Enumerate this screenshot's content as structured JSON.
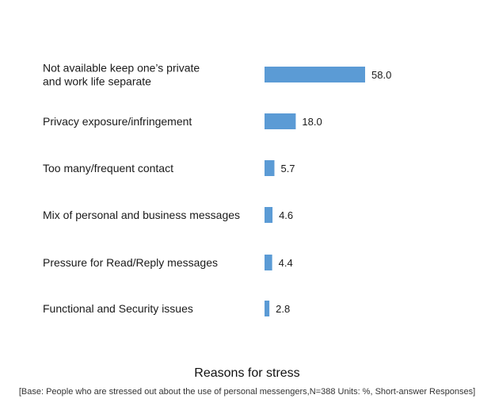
{
  "chart_data": {
    "type": "bar",
    "orientation": "horizontal",
    "title": "Reasons for stress",
    "note": "[Base: People who are stressed out about the use of personal messengers,N=388 Units: %, Short-answer Responses]",
    "categories": [
      [
        "Not available keep one’s private",
        "and work life separate"
      ],
      [
        "Privacy exposure/infringement"
      ],
      [
        "Too many/frequent contact"
      ],
      [
        "Mix of personal and business messages"
      ],
      [
        "Pressure for Read/Reply messages"
      ],
      [
        "Functional and Security issues"
      ]
    ],
    "values": [
      58.0,
      18.0,
      5.7,
      4.6,
      4.4,
      2.8
    ],
    "value_labels": [
      "58.0",
      "18.0",
      "5.7",
      "4.6",
      "4.4",
      "2.8"
    ],
    "xlim": [
      0,
      58.0
    ],
    "grid": false,
    "bar_color": "#5b9bd5"
  }
}
